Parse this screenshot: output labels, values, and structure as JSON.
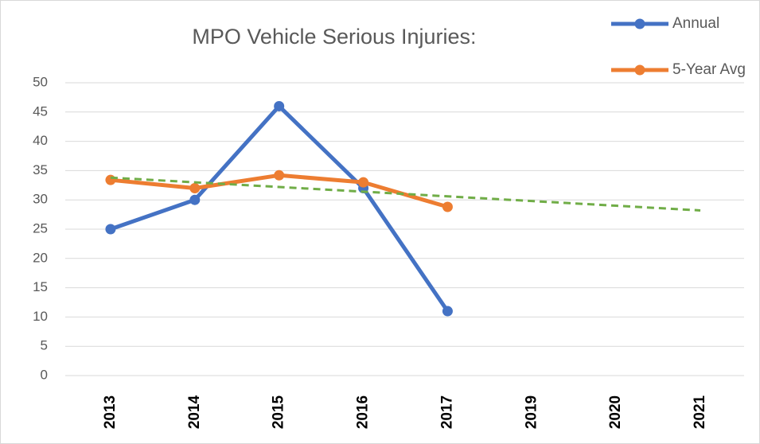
{
  "chart_data": {
    "type": "line",
    "title": "MPO Vehicle Serious Injuries:",
    "categories": [
      "2013",
      "2014",
      "2015",
      "2016",
      "2017",
      "2019",
      "2020",
      "2021"
    ],
    "series": [
      {
        "name": "Annual",
        "color": "#4472c4",
        "marker": true,
        "values": [
          25,
          30,
          46,
          32,
          11,
          null,
          null,
          null
        ]
      },
      {
        "name": "5-Year Avg",
        "color": "#ed7d31",
        "marker": true,
        "values": [
          33.4,
          32,
          34.2,
          33,
          28.8,
          null,
          null,
          null
        ]
      },
      {
        "color": "#70ad47",
        "dashed": true,
        "marker": false,
        "values": [
          33.8,
          33.0,
          32.2,
          31.4,
          30.6,
          29.8,
          29.0,
          28.2
        ]
      }
    ],
    "ylim": [
      0,
      50
    ],
    "yticks": [
      0,
      5,
      10,
      15,
      20,
      25,
      30,
      35,
      40,
      45,
      50
    ],
    "grid": true,
    "legend": "top-right"
  }
}
